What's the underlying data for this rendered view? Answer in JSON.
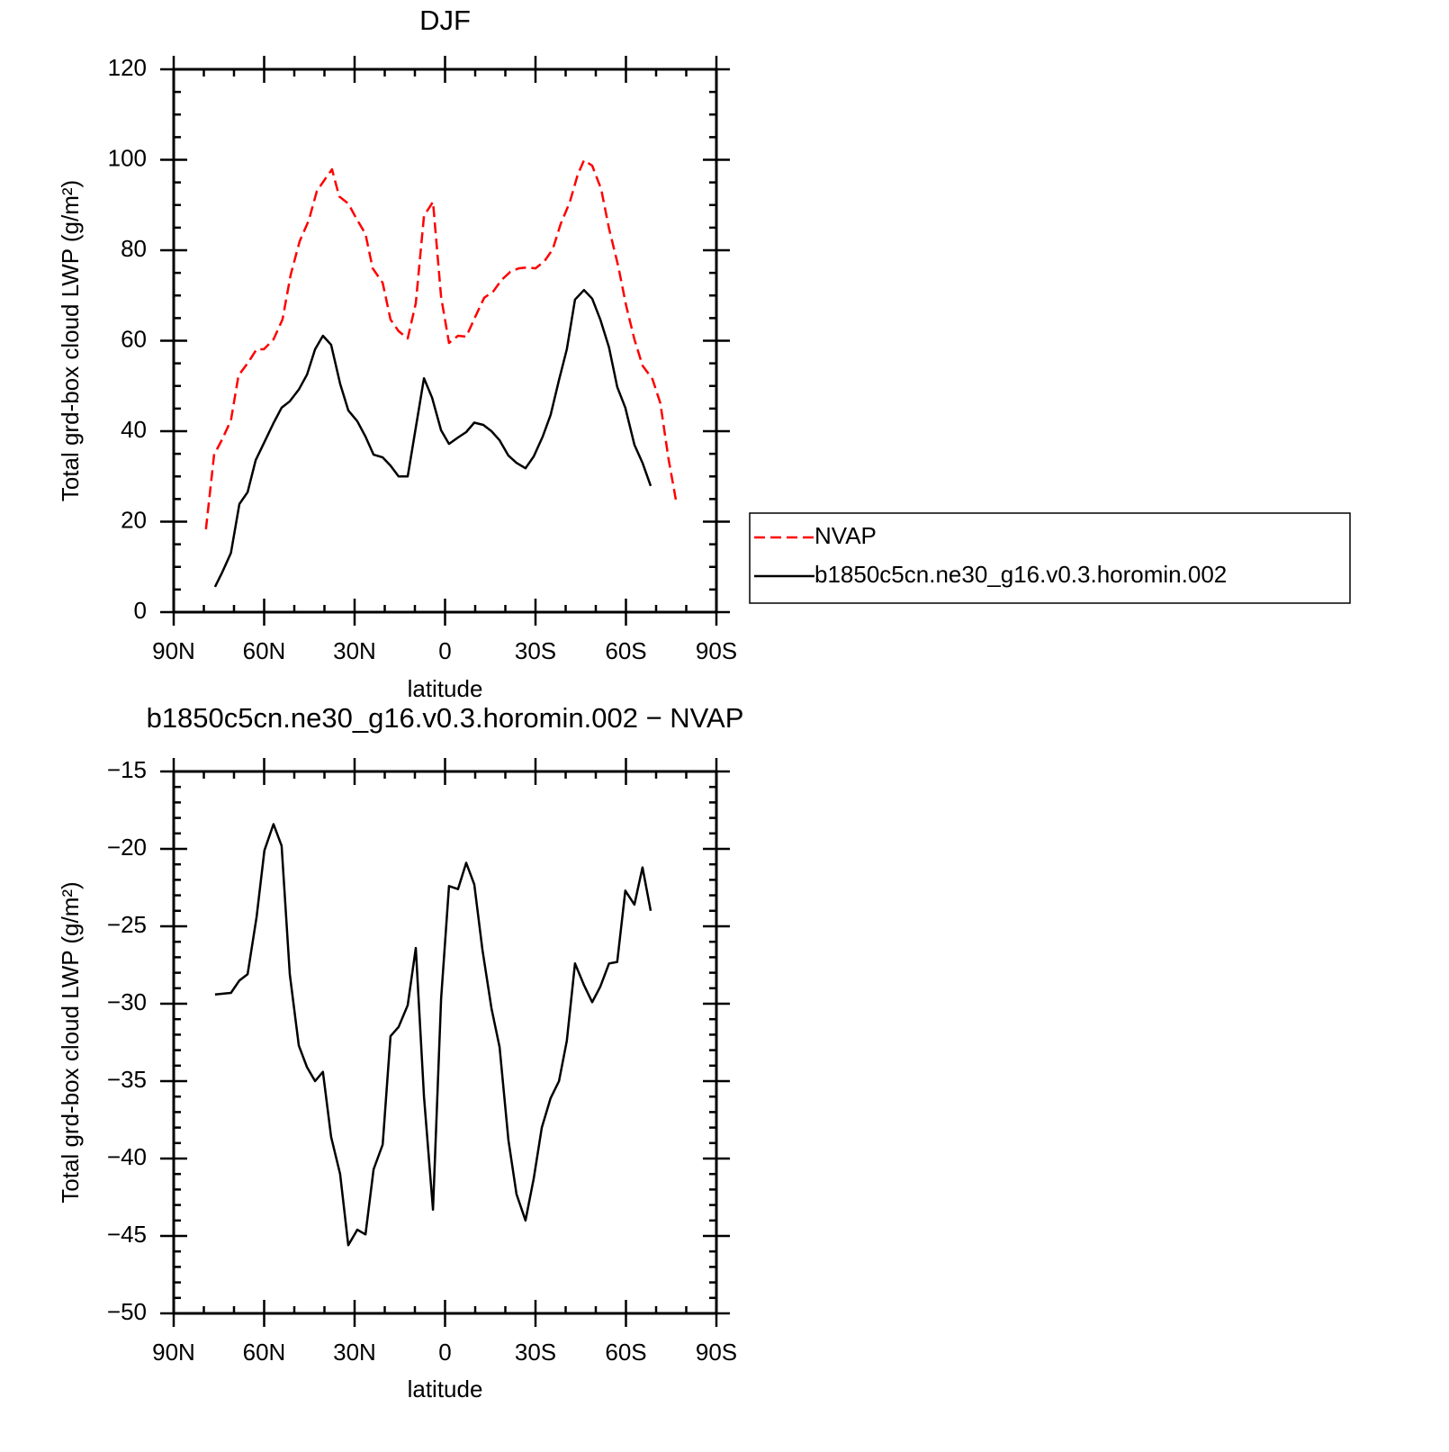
{
  "chart_data": [
    {
      "type": "line",
      "title": "DJF",
      "xlabel": "latitude",
      "ylabel": "Total grd-box cloud LWP (g/m²)",
      "xlim": [
        90,
        -90
      ],
      "xticks": [
        {
          "value": 90,
          "label": "90N"
        },
        {
          "value": 60,
          "label": "60N"
        },
        {
          "value": 30,
          "label": "30N"
        },
        0,
        {
          "value": -30,
          "label": "30S"
        },
        {
          "value": -60,
          "label": "60S"
        },
        {
          "value": -90,
          "label": "90S"
        }
      ],
      "xminorticks": [
        80,
        70,
        50,
        40,
        20,
        10,
        -10,
        -20,
        -40,
        -50,
        -70,
        -80
      ],
      "ylim": [
        0,
        120
      ],
      "yticks": [
        0,
        20,
        40,
        60,
        80,
        100,
        120
      ],
      "yminorticks": [
        5,
        10,
        15,
        25,
        30,
        35,
        45,
        50,
        55,
        65,
        70,
        75,
        85,
        90,
        95,
        105,
        110,
        115
      ],
      "legend": "outside right",
      "series": [
        {
          "name": "NVAP",
          "color": "#ff0000",
          "dashed": true,
          "x": [
            79.3,
            76.6,
            73.9,
            71,
            68.5,
            65.2,
            62.5,
            60.1,
            56.9,
            53.9,
            51.2,
            48.2,
            45.2,
            42.5,
            39.6,
            37.5,
            35.1,
            32.1,
            29.4,
            26.4,
            24,
            20.7,
            18.1,
            15.4,
            12.4,
            9.7,
            7,
            4,
            1.3,
            -1.3,
            -4.3,
            -7,
            -10.3,
            -13,
            -16,
            -18.7,
            -21.6,
            -24.4,
            -27.3,
            -30,
            -33,
            -35.7,
            -38.4,
            -41.3,
            -44,
            -46.1,
            -48.8,
            -51.8,
            -54.4,
            -57.4,
            -60.1,
            -62.8,
            -65.5,
            -68.8,
            -71.4,
            -74.1,
            -76.8
          ],
          "values": [
            18.3,
            34.8,
            38.2,
            42.4,
            52.3,
            55.3,
            58.1,
            58.1,
            60.3,
            64.7,
            74.6,
            82,
            86.6,
            93.1,
            95.9,
            97.9,
            91.9,
            90.3,
            87,
            83.6,
            76,
            72.8,
            64.7,
            62.1,
            60.5,
            68.3,
            87.6,
            90.7,
            69.7,
            59.5,
            61.1,
            60.9,
            65.7,
            69.5,
            70.9,
            73.4,
            75.2,
            76,
            76.2,
            76,
            77.6,
            80.2,
            85.9,
            90.5,
            96.7,
            99.9,
            98.7,
            93.5,
            84.8,
            76.6,
            67.7,
            60.3,
            54.5,
            51.5,
            46.2,
            34,
            23.9
          ]
        },
        {
          "name": "b1850c5cn.ne30_g16.v0.3.horomin.002",
          "color": "#000000",
          "dashed": false,
          "x": [
            76.3,
            73.9,
            71,
            68.2,
            65.5,
            62.8,
            59.9,
            56.9,
            54.2,
            51.5,
            48.5,
            45.8,
            43.1,
            40.5,
            37.8,
            34.8,
            32.1,
            29.1,
            26.4,
            23.7,
            20.7,
            18.1,
            15.4,
            12.4,
            9.7,
            7,
            4.3,
            1.3,
            -1.3,
            -4.3,
            -7,
            -9.7,
            -12.7,
            -15.4,
            -18.1,
            -21,
            -23.7,
            -26.7,
            -29.4,
            -32.4,
            -35,
            -37.8,
            -40.4,
            -43.1,
            -46.1,
            -48.8,
            -51.5,
            -54.4,
            -57.1,
            -59.8,
            -62.8,
            -65.5,
            -68.2
          ],
          "values": [
            5.6,
            8.8,
            13.1,
            23.9,
            26.5,
            33.6,
            37.6,
            41.8,
            45.2,
            46.6,
            49.2,
            52.5,
            58.1,
            61.1,
            59.1,
            50.5,
            44.6,
            42.2,
            38.8,
            34.8,
            34.2,
            32.4,
            30,
            30,
            40.8,
            51.7,
            47.4,
            40.2,
            37.2,
            38.6,
            39.8,
            41.9,
            41.4,
            40,
            38,
            34.6,
            33,
            31.8,
            34.4,
            38.8,
            43.6,
            51.3,
            58.1,
            69.1,
            71.2,
            69.3,
            64.7,
            58.5,
            49.8,
            45.2,
            37,
            33,
            27.9
          ]
        }
      ]
    },
    {
      "type": "line",
      "title": "b1850c5cn.ne30_g16.v0.3.horomin.002 − NVAP",
      "xlabel": "latitude",
      "ylabel": "Total grd-box cloud LWP (g/m²)",
      "xlim": [
        90,
        -90
      ],
      "xticks": [
        {
          "value": 90,
          "label": "90N"
        },
        {
          "value": 60,
          "label": "60N"
        },
        {
          "value": 30,
          "label": "30N"
        },
        0,
        {
          "value": -30,
          "label": "30S"
        },
        {
          "value": -60,
          "label": "60S"
        },
        {
          "value": -90,
          "label": "90S"
        }
      ],
      "xminorticks": [
        80,
        70,
        50,
        40,
        20,
        10,
        -10,
        -20,
        -40,
        -50,
        -70,
        -80
      ],
      "ylim": [
        -50,
        -15
      ],
      "yticks": [
        {
          "value": -50,
          "label": "−50"
        },
        {
          "value": -45,
          "label": "−45"
        },
        {
          "value": -40,
          "label": "−40"
        },
        {
          "value": -35,
          "label": "−35"
        },
        {
          "value": -30,
          "label": "−30"
        },
        {
          "value": -25,
          "label": "−25"
        },
        {
          "value": -20,
          "label": "−20"
        },
        {
          "value": -15,
          "label": "−15"
        }
      ],
      "yminorticks": [
        -49,
        -48,
        -47,
        -46,
        -44,
        -43,
        -42,
        -41,
        -39,
        -38,
        -37,
        -36,
        -34,
        -33,
        -32,
        -31,
        -29,
        -28,
        -27,
        -26,
        -24,
        -23,
        -22,
        -21,
        -19,
        -18,
        -17,
        -16
      ],
      "series": [
        {
          "color": "#000000",
          "dashed": false,
          "x": [
            76.3,
            71,
            68.2,
            65.5,
            62.5,
            59.9,
            56.9,
            54.2,
            51.5,
            48.5,
            45.8,
            43.1,
            40.5,
            37.8,
            34.8,
            32.1,
            29.1,
            26.4,
            23.7,
            20.7,
            18.1,
            15.4,
            12.4,
            9.7,
            7,
            4,
            1.3,
            -1.3,
            -4.3,
            -7,
            -9.7,
            -12.4,
            -15.4,
            -18.1,
            -21,
            -23.7,
            -26.7,
            -29.4,
            -32.1,
            -35,
            -37.8,
            -40.4,
            -43.1,
            -46.1,
            -48.8,
            -51.5,
            -54.4,
            -57.1,
            -59.8,
            -62.8,
            -65.5,
            -68.2
          ],
          "values": [
            -29.4,
            -29.3,
            -28.5,
            -28.1,
            -24.4,
            -20.1,
            -18.4,
            -19.8,
            -28.1,
            -32.7,
            -34.1,
            -35,
            -34.4,
            -38.6,
            -41,
            -45.6,
            -44.6,
            -44.9,
            -40.7,
            -39.1,
            -32.1,
            -31.5,
            -30.1,
            -26.4,
            -36,
            -43.3,
            -29.7,
            -22.4,
            -22.6,
            -20.9,
            -22.3,
            -26.5,
            -30.3,
            -32.8,
            -38.8,
            -42.3,
            -44,
            -41.3,
            -38,
            -36.1,
            -35,
            -32.4,
            -27.4,
            -28.8,
            -29.9,
            -28.9,
            -27.4,
            -27.3,
            -22.7,
            -23.6,
            -21.2,
            -24
          ]
        }
      ]
    }
  ]
}
